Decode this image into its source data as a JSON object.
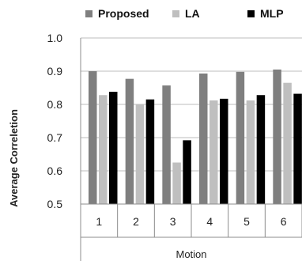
{
  "chart_data": {
    "type": "bar",
    "categories": [
      "1",
      "2",
      "3",
      "4",
      "5",
      "6"
    ],
    "series": [
      {
        "name": "Proposed",
        "color": "#7f7f7f",
        "values": [
          0.9,
          0.877,
          0.857,
          0.893,
          0.898,
          0.905
        ]
      },
      {
        "name": "LA",
        "color": "#bfbfbf",
        "values": [
          0.828,
          0.8,
          0.625,
          0.812,
          0.812,
          0.865
        ]
      },
      {
        "name": "MLP",
        "color": "#000000",
        "values": [
          0.838,
          0.815,
          0.692,
          0.817,
          0.828,
          0.832
        ]
      }
    ],
    "xlabel": "Motion",
    "ylabel": "Average Correletion",
    "ylim": [
      0.5,
      1.0
    ],
    "yticks": [
      "0.5",
      "0.6",
      "0.7",
      "0.8",
      "0.9",
      "1.0"
    ],
    "grid": true,
    "legend_position": "top"
  }
}
